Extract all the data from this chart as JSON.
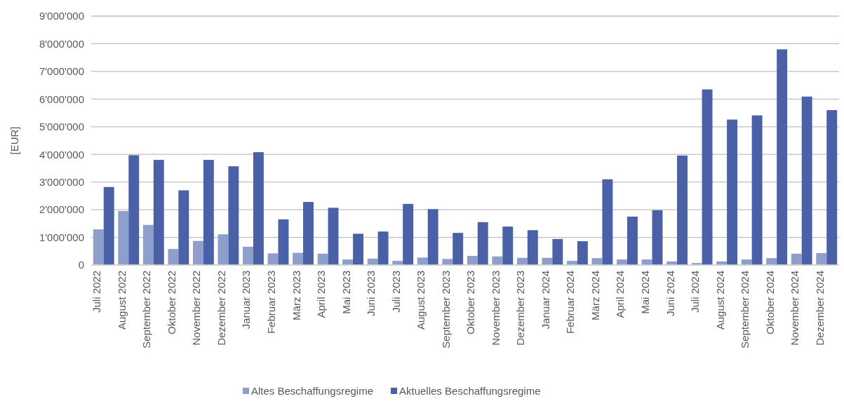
{
  "chart_data": {
    "type": "bar",
    "ylabel": "[EUR]",
    "categories": [
      "Juli 2022",
      "August 2022",
      "September 2022",
      "Oktober 2022",
      "November 2022",
      "Dezember 2022",
      "Januar 2023",
      "Februar 2023",
      "März 2023",
      "April 2023",
      "Mai 2023",
      "Juni 2023",
      "Juli 2023",
      "August 2023",
      "September 2023",
      "Oktober 2023",
      "November 2023",
      "Dezember 2023",
      "Januar 2024",
      "Februar 2024",
      "März 2024",
      "April 2024",
      "Mai 2024",
      "Juni 2024",
      "Juli 2024",
      "August 2024",
      "September 2024",
      "Oktober 2024",
      "November 2024",
      "Dezember 2024"
    ],
    "series": [
      {
        "name": "Altes Beschaffungsregime",
        "color": "#8f9fcc",
        "values": [
          1290000,
          1950000,
          1450000,
          580000,
          870000,
          1110000,
          660000,
          420000,
          440000,
          410000,
          200000,
          230000,
          150000,
          270000,
          220000,
          330000,
          310000,
          260000,
          260000,
          150000,
          250000,
          200000,
          200000,
          130000,
          70000,
          130000,
          200000,
          250000,
          410000,
          430000
        ]
      },
      {
        "name": "Aktuelles Beschaffungsregime",
        "color": "#4a61a8",
        "values": [
          2820000,
          3970000,
          3800000,
          2700000,
          3800000,
          3570000,
          4080000,
          1650000,
          2280000,
          2070000,
          1130000,
          1210000,
          2210000,
          2020000,
          1160000,
          1550000,
          1390000,
          1260000,
          940000,
          860000,
          3100000,
          1750000,
          1980000,
          3960000,
          6350000,
          5260000,
          5410000,
          7800000,
          6090000,
          5600000
        ]
      }
    ],
    "ylim": [
      0,
      9000000
    ],
    "yticks": [
      {
        "value": 0,
        "label": "0"
      },
      {
        "value": 1000000,
        "label": "1'000'000"
      },
      {
        "value": 2000000,
        "label": "2'000'000"
      },
      {
        "value": 3000000,
        "label": "3'000'000"
      },
      {
        "value": 4000000,
        "label": "4'000'000"
      },
      {
        "value": 5000000,
        "label": "5'000'000"
      },
      {
        "value": 6000000,
        "label": "6'000'000"
      },
      {
        "value": 7000000,
        "label": "7'000'000"
      },
      {
        "value": 8000000,
        "label": "8'000'000"
      },
      {
        "value": 9000000,
        "label": "9'000'000"
      }
    ],
    "grid": "y",
    "legend": "bottom"
  }
}
